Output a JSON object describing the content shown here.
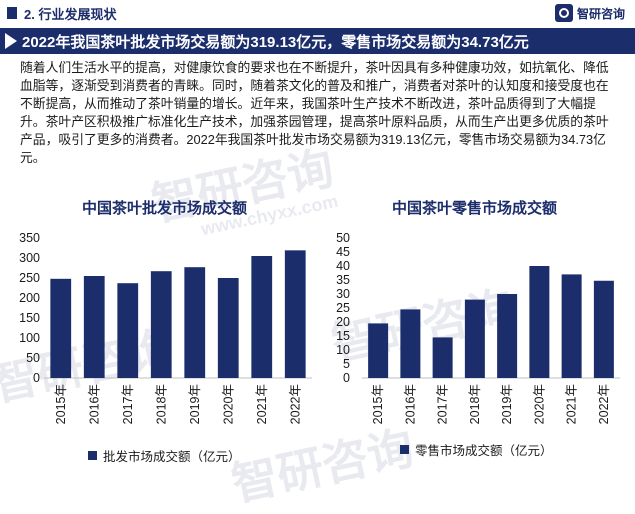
{
  "header": {
    "section": "2. 行业发展现状",
    "logo": "智研咨询"
  },
  "banner": {
    "title": "2022年我国茶叶批发市场交易额为319.13亿元，零售市场交易额为34.73亿元"
  },
  "paragraph": "随着人们生活水平的提高，对健康饮食的要求也在不断提升，茶叶因具有多种健康功效，如抗氧化、降低血脂等，逐渐受到消费者的青睐。同时，随着茶文化的普及和推广，消费者对茶叶的认知度和接受度也在不断提高，从而推动了茶叶销量的增长。近年来，我国茶叶生产技术不断改进，茶叶品质得到了大幅提升。茶叶产区积极推广标准化生产技术，加强茶园管理，提高茶叶原料品质，从而生产出更多优质的茶叶产品，吸引了更多的消费者。2022年我国茶叶批发市场交易额为319.13亿元，零售市场交易额为34.73亿元。",
  "watermark": {
    "cn": "智研咨询",
    "en": "www.chyxx.com"
  },
  "colors": {
    "bar": "#1c2d6b",
    "accent": "#1c2d6b"
  },
  "chart_data": [
    {
      "type": "bar",
      "title": "中国茶叶批发市场成交额",
      "categories": [
        "2015年",
        "2016年",
        "2017年",
        "2018年",
        "2019年",
        "2020年",
        "2021年",
        "2022年"
      ],
      "series": [
        {
          "name": "批发市场成交额（亿元）",
          "values": [
            248,
            255,
            237,
            267,
            277,
            250,
            305,
            319.13
          ]
        }
      ],
      "yticks": [
        0,
        50,
        100,
        150,
        200,
        250,
        300,
        350
      ],
      "ylim": [
        0,
        350
      ],
      "legend": "bottom",
      "grid": false
    },
    {
      "type": "bar",
      "title": "中国茶叶零售市场成交额",
      "categories": [
        "2015年",
        "2016年",
        "2017年",
        "2018年",
        "2019年",
        "2020年",
        "2021年",
        "2022年"
      ],
      "series": [
        {
          "name": "零售市场成交额（亿元）",
          "values": [
            19.5,
            24.5,
            14.5,
            28,
            30,
            40,
            37,
            34.73
          ]
        }
      ],
      "yticks": [
        0,
        5,
        10,
        15,
        20,
        25,
        30,
        35,
        40,
        45,
        50
      ],
      "ylim": [
        0,
        50
      ],
      "legend": "bottom",
      "grid": false
    }
  ]
}
